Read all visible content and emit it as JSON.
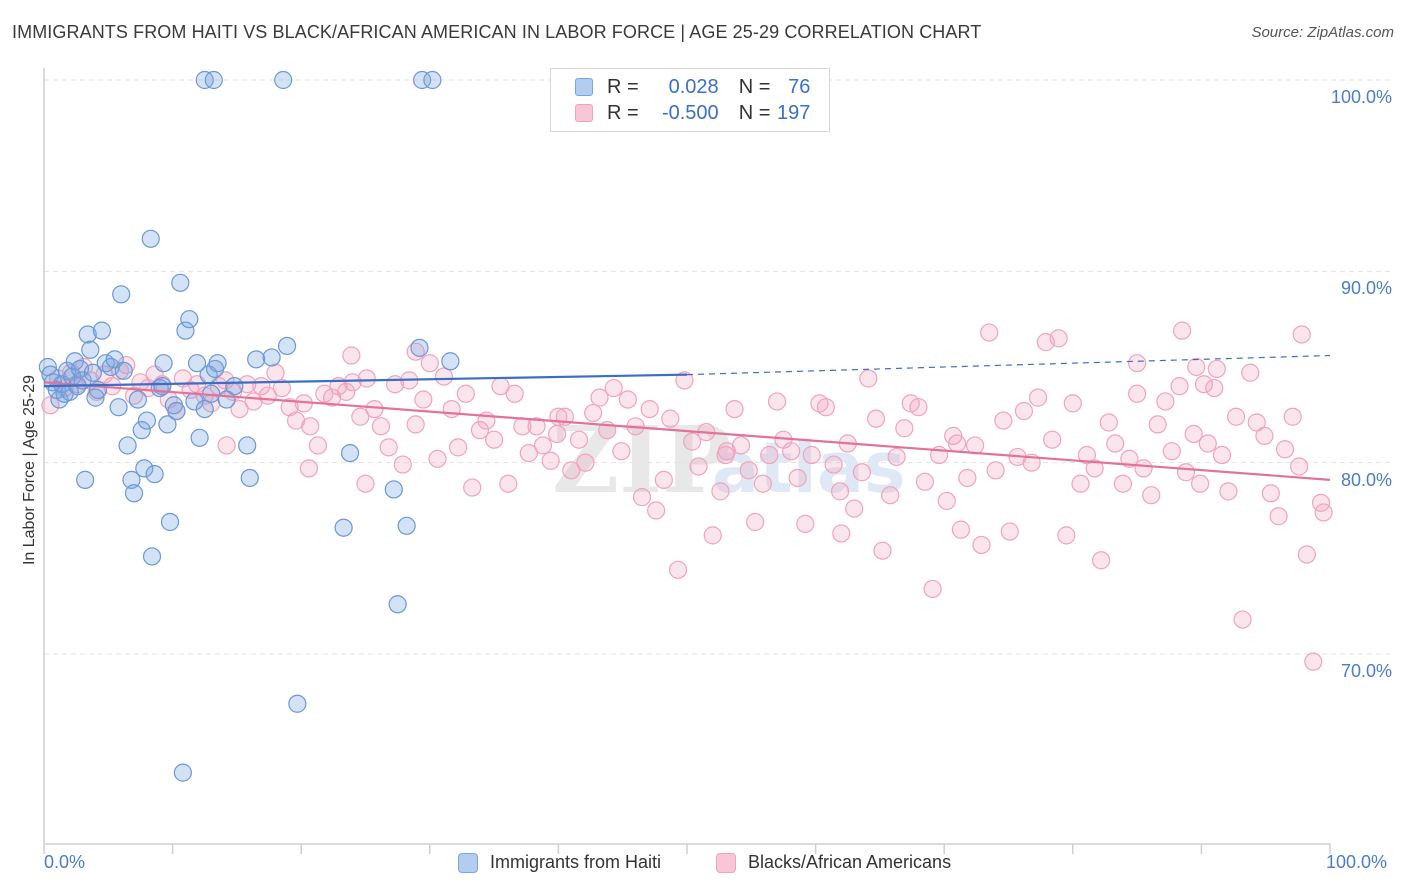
{
  "header": {
    "title": "IMMIGRANTS FROM HAITI VS BLACK/AFRICAN AMERICAN IN LABOR FORCE | AGE 25-29 CORRELATION CHART",
    "source": "Source: ZipAtlas.com"
  },
  "legend": {
    "rows": [
      {
        "r_label": "R =",
        "r_value": "0.028",
        "n_label": "N =",
        "n_value": "76"
      },
      {
        "r_label": "R =",
        "r_value": "-0.500",
        "n_label": "N =",
        "n_value": "197"
      }
    ]
  },
  "watermark": {
    "zip": "ZIP",
    "atlas": "atlas"
  },
  "chart_data": {
    "type": "scatter",
    "title": "IMMIGRANTS FROM HAITI VS BLACK/AFRICAN AMERICAN IN LABOR FORCE | AGE 25-29 CORRELATION CHART",
    "ylabel": "In Labor Force | Age 25-29",
    "xlabel": "",
    "xlim": [
      0,
      100
    ],
    "ylim": [
      60.5,
      101.5
    ],
    "x_tick_labels": [
      "0.0%",
      "100.0%"
    ],
    "y_ticks": [
      70,
      80,
      90,
      100
    ],
    "y_tick_labels": [
      "70.0%",
      "80.0%",
      "90.0%",
      "100.0%"
    ],
    "grid": true,
    "legend_placement": "bottom",
    "colors": {
      "blue": "#7aa6e0",
      "blue_line": "#3a6fc8",
      "pink": "#f2a2bd",
      "pink_line": "#e3729b",
      "tick": "#4a7dc9"
    },
    "series": [
      {
        "name": "Immigrants from Haiti",
        "color": "#7aa6e0",
        "trend": {
          "x": [
            0,
            50,
            100
          ],
          "y": [
            84.0,
            84.6,
            85.6
          ],
          "solid_to": 50
        },
        "points": [
          [
            0.3,
            85.0
          ],
          [
            0.5,
            84.6
          ],
          [
            0.7,
            84.2
          ],
          [
            1.0,
            83.8
          ],
          [
            1.2,
            83.3
          ],
          [
            1.4,
            84.1
          ],
          [
            1.6,
            83.6
          ],
          [
            1.8,
            84.8
          ],
          [
            2.0,
            83.7
          ],
          [
            2.2,
            84.5
          ],
          [
            2.4,
            85.3
          ],
          [
            2.6,
            84.0
          ],
          [
            2.8,
            84.9
          ],
          [
            3.0,
            84.3
          ],
          [
            3.2,
            79.1
          ],
          [
            3.4,
            86.7
          ],
          [
            3.6,
            85.9
          ],
          [
            3.8,
            84.7
          ],
          [
            4.0,
            83.4
          ],
          [
            4.2,
            83.8
          ],
          [
            4.5,
            86.9
          ],
          [
            4.8,
            85.2
          ],
          [
            5.2,
            85.0
          ],
          [
            5.5,
            85.4
          ],
          [
            5.8,
            82.9
          ],
          [
            6.0,
            88.8
          ],
          [
            6.2,
            84.8
          ],
          [
            6.5,
            80.9
          ],
          [
            6.8,
            79.1
          ],
          [
            7.0,
            78.4
          ],
          [
            7.3,
            83.3
          ],
          [
            7.6,
            81.7
          ],
          [
            7.8,
            79.7
          ],
          [
            8.0,
            82.2
          ],
          [
            8.3,
            91.7
          ],
          [
            8.4,
            75.1
          ],
          [
            8.6,
            79.4
          ],
          [
            9.0,
            83.9
          ],
          [
            9.2,
            84.0
          ],
          [
            9.3,
            85.2
          ],
          [
            9.6,
            82.0
          ],
          [
            9.8,
            76.9
          ],
          [
            10.1,
            83.0
          ],
          [
            10.3,
            82.7
          ],
          [
            10.6,
            89.4
          ],
          [
            10.8,
            63.8
          ],
          [
            11.0,
            86.9
          ],
          [
            11.3,
            87.5
          ],
          [
            11.7,
            83.2
          ],
          [
            11.9,
            85.2
          ],
          [
            12.1,
            81.3
          ],
          [
            12.5,
            82.8
          ],
          [
            12.8,
            84.6
          ],
          [
            13.0,
            83.6
          ],
          [
            13.3,
            84.9
          ],
          [
            13.5,
            85.2
          ],
          [
            14.2,
            83.3
          ],
          [
            14.8,
            84.0
          ],
          [
            15.8,
            80.9
          ],
          [
            16.0,
            79.2
          ],
          [
            16.5,
            85.4
          ],
          [
            17.7,
            85.5
          ],
          [
            18.9,
            86.1
          ],
          [
            19.7,
            67.4
          ],
          [
            23.3,
            76.6
          ],
          [
            23.8,
            80.5
          ],
          [
            27.2,
            78.6
          ],
          [
            27.5,
            72.6
          ],
          [
            28.2,
            76.7
          ],
          [
            29.2,
            86.0
          ],
          [
            29.4,
            100.0
          ],
          [
            30.2,
            100.0
          ],
          [
            31.6,
            85.3
          ],
          [
            12.5,
            100.0
          ],
          [
            13.2,
            100.0
          ],
          [
            18.6,
            100.0
          ]
        ]
      },
      {
        "name": "Blacks/African Americans",
        "color": "#f2a2bd",
        "trend": {
          "x": [
            0,
            100
          ],
          "y": [
            84.2,
            79.1
          ]
        },
        "points": [
          [
            0.5,
            83.0
          ],
          [
            1.1,
            84.4
          ],
          [
            1.6,
            83.9
          ],
          [
            2.1,
            84.7
          ],
          [
            2.6,
            84.1
          ],
          [
            3.1,
            85.0
          ],
          [
            3.6,
            84.3
          ],
          [
            4.1,
            83.7
          ],
          [
            4.7,
            84.6
          ],
          [
            5.3,
            84.0
          ],
          [
            5.9,
            84.8
          ],
          [
            6.4,
            85.1
          ],
          [
            7.0,
            83.5
          ],
          [
            7.5,
            84.2
          ],
          [
            8.1,
            83.9
          ],
          [
            8.6,
            84.6
          ],
          [
            9.2,
            84.1
          ],
          [
            9.7,
            83.3
          ],
          [
            10.3,
            82.7
          ],
          [
            10.8,
            84.4
          ],
          [
            11.4,
            83.8
          ],
          [
            11.9,
            84.1
          ],
          [
            12.5,
            83.5
          ],
          [
            13.0,
            83.1
          ],
          [
            13.6,
            84.0
          ],
          [
            14.1,
            84.3
          ],
          [
            14.7,
            83.7
          ],
          [
            15.2,
            82.8
          ],
          [
            15.8,
            84.1
          ],
          [
            16.3,
            83.2
          ],
          [
            16.9,
            84.0
          ],
          [
            17.4,
            83.5
          ],
          [
            18.0,
            84.7
          ],
          [
            18.5,
            83.9
          ],
          [
            19.1,
            82.9
          ],
          [
            19.6,
            82.2
          ],
          [
            20.2,
            83.1
          ],
          [
            20.7,
            81.9
          ],
          [
            21.3,
            80.9
          ],
          [
            21.8,
            83.6
          ],
          [
            22.4,
            83.4
          ],
          [
            22.9,
            84.0
          ],
          [
            23.5,
            83.7
          ],
          [
            24.0,
            84.2
          ],
          [
            24.6,
            82.4
          ],
          [
            25.1,
            84.4
          ],
          [
            25.7,
            82.8
          ],
          [
            26.2,
            81.9
          ],
          [
            26.8,
            80.8
          ],
          [
            27.3,
            84.1
          ],
          [
            27.9,
            79.9
          ],
          [
            28.4,
            84.3
          ],
          [
            28.9,
            82.0
          ],
          [
            29.5,
            83.3
          ],
          [
            30.0,
            85.2
          ],
          [
            30.6,
            80.2
          ],
          [
            31.1,
            84.5
          ],
          [
            31.7,
            82.8
          ],
          [
            32.2,
            80.8
          ],
          [
            32.8,
            83.6
          ],
          [
            33.3,
            78.7
          ],
          [
            33.9,
            81.7
          ],
          [
            34.4,
            82.2
          ],
          [
            35.0,
            81.2
          ],
          [
            35.5,
            84.0
          ],
          [
            36.1,
            78.9
          ],
          [
            36.6,
            83.6
          ],
          [
            37.2,
            81.9
          ],
          [
            37.7,
            80.5
          ],
          [
            38.3,
            81.9
          ],
          [
            38.8,
            80.9
          ],
          [
            39.4,
            80.1
          ],
          [
            39.9,
            81.5
          ],
          [
            40.5,
            82.4
          ],
          [
            41.0,
            79.6
          ],
          [
            41.6,
            81.2
          ],
          [
            42.1,
            80.0
          ],
          [
            42.7,
            82.6
          ],
          [
            43.2,
            83.4
          ],
          [
            43.8,
            81.7
          ],
          [
            44.3,
            83.9
          ],
          [
            44.9,
            80.6
          ],
          [
            45.4,
            83.3
          ],
          [
            46.0,
            81.9
          ],
          [
            46.5,
            78.2
          ],
          [
            47.1,
            82.8
          ],
          [
            47.6,
            77.5
          ],
          [
            48.2,
            79.1
          ],
          [
            48.7,
            82.3
          ],
          [
            49.3,
            74.4
          ],
          [
            49.8,
            84.3
          ],
          [
            50.4,
            81.1
          ],
          [
            50.9,
            79.8
          ],
          [
            51.5,
            81.6
          ],
          [
            52.0,
            76.2
          ],
          [
            52.6,
            78.5
          ],
          [
            53.1,
            80.6
          ],
          [
            53.7,
            82.8
          ],
          [
            54.2,
            80.9
          ],
          [
            54.8,
            79.6
          ],
          [
            55.3,
            76.9
          ],
          [
            55.9,
            78.9
          ],
          [
            56.4,
            80.4
          ],
          [
            57.0,
            83.2
          ],
          [
            57.5,
            81.2
          ],
          [
            58.1,
            80.6
          ],
          [
            58.6,
            79.2
          ],
          [
            59.2,
            76.8
          ],
          [
            59.7,
            80.4
          ],
          [
            60.3,
            83.1
          ],
          [
            60.8,
            82.9
          ],
          [
            61.4,
            79.9
          ],
          [
            61.9,
            78.5
          ],
          [
            62.5,
            81.0
          ],
          [
            63.0,
            77.6
          ],
          [
            63.6,
            79.5
          ],
          [
            64.1,
            84.4
          ],
          [
            64.7,
            82.3
          ],
          [
            65.2,
            75.4
          ],
          [
            65.8,
            78.3
          ],
          [
            66.3,
            80.3
          ],
          [
            66.9,
            81.8
          ],
          [
            67.4,
            83.1
          ],
          [
            68.0,
            82.9
          ],
          [
            68.5,
            79.0
          ],
          [
            69.1,
            73.4
          ],
          [
            69.6,
            80.4
          ],
          [
            70.2,
            78.0
          ],
          [
            70.7,
            81.4
          ],
          [
            71.3,
            76.5
          ],
          [
            71.8,
            79.2
          ],
          [
            72.4,
            80.9
          ],
          [
            72.9,
            75.7
          ],
          [
            73.5,
            86.8
          ],
          [
            74.0,
            79.6
          ],
          [
            74.6,
            82.2
          ],
          [
            75.1,
            76.4
          ],
          [
            75.7,
            80.3
          ],
          [
            76.2,
            82.7
          ],
          [
            76.8,
            80.0
          ],
          [
            77.3,
            83.4
          ],
          [
            77.9,
            86.3
          ],
          [
            78.4,
            81.2
          ],
          [
            78.9,
            86.5
          ],
          [
            79.5,
            76.2
          ],
          [
            80.0,
            83.1
          ],
          [
            80.6,
            78.9
          ],
          [
            81.1,
            80.4
          ],
          [
            81.7,
            79.7
          ],
          [
            82.2,
            74.9
          ],
          [
            82.8,
            82.1
          ],
          [
            83.3,
            81.0
          ],
          [
            83.9,
            78.9
          ],
          [
            84.4,
            80.2
          ],
          [
            85.0,
            83.6
          ],
          [
            85.5,
            79.7
          ],
          [
            86.1,
            78.3
          ],
          [
            86.6,
            82.0
          ],
          [
            87.2,
            83.2
          ],
          [
            87.7,
            80.6
          ],
          [
            88.3,
            84.0
          ],
          [
            88.8,
            79.5
          ],
          [
            89.4,
            81.5
          ],
          [
            89.9,
            78.9
          ],
          [
            90.5,
            81.0
          ],
          [
            91.0,
            83.9
          ],
          [
            91.6,
            80.4
          ],
          [
            92.1,
            78.5
          ],
          [
            92.7,
            82.4
          ],
          [
            93.2,
            71.8
          ],
          [
            93.8,
            84.7
          ],
          [
            94.3,
            82.1
          ],
          [
            94.9,
            81.4
          ],
          [
            95.4,
            78.4
          ],
          [
            96.0,
            77.2
          ],
          [
            96.5,
            80.7
          ],
          [
            97.1,
            82.4
          ],
          [
            97.6,
            79.8
          ],
          [
            98.2,
            75.2
          ],
          [
            98.7,
            69.6
          ],
          [
            99.3,
            77.9
          ],
          [
            99.5,
            77.4
          ],
          [
            23.9,
            85.6
          ],
          [
            20.6,
            79.7
          ],
          [
            14.2,
            80.9
          ],
          [
            88.5,
            86.9
          ],
          [
            89.6,
            85.0
          ],
          [
            90.2,
            84.1
          ],
          [
            91.2,
            84.9
          ],
          [
            97.8,
            86.7
          ],
          [
            25.0,
            78.9
          ],
          [
            28.9,
            85.8
          ],
          [
            62.0,
            76.3
          ],
          [
            71.0,
            81.0
          ],
          [
            53.0,
            80.4
          ],
          [
            40.0,
            82.4
          ],
          [
            85.0,
            85.2
          ]
        ]
      }
    ]
  },
  "bottom_legend": {
    "items": [
      {
        "label": "Immigrants from Haiti"
      },
      {
        "label": "Blacks/African Americans"
      }
    ]
  }
}
